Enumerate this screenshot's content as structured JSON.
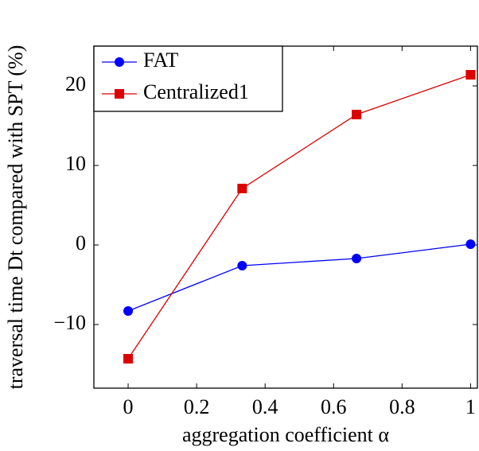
{
  "chart_data": {
    "type": "line",
    "xlabel": "aggregation coefficient α",
    "ylabel": "traversal time Dt compared with SPT (%)",
    "x": [
      0,
      0.333,
      0.667,
      1
    ],
    "series": [
      {
        "name": "FAT",
        "color": "#0000ff",
        "marker": "circle",
        "values": [
          -8.3,
          -2.6,
          -1.7,
          0.1
        ]
      },
      {
        "name": "Centralized1",
        "color": "#dd0000",
        "marker": "square",
        "values": [
          -14.3,
          7.1,
          16.4,
          21.4
        ]
      }
    ],
    "xlim": [
      -0.1,
      1.02
    ],
    "xticks": [
      0,
      0.2,
      0.4,
      0.6,
      0.8,
      1
    ],
    "ylim": [
      -18,
      25
    ],
    "yticks": [
      {
        "value": -10,
        "label": "−10"
      },
      0,
      10,
      20
    ],
    "legend": "top-left"
  }
}
